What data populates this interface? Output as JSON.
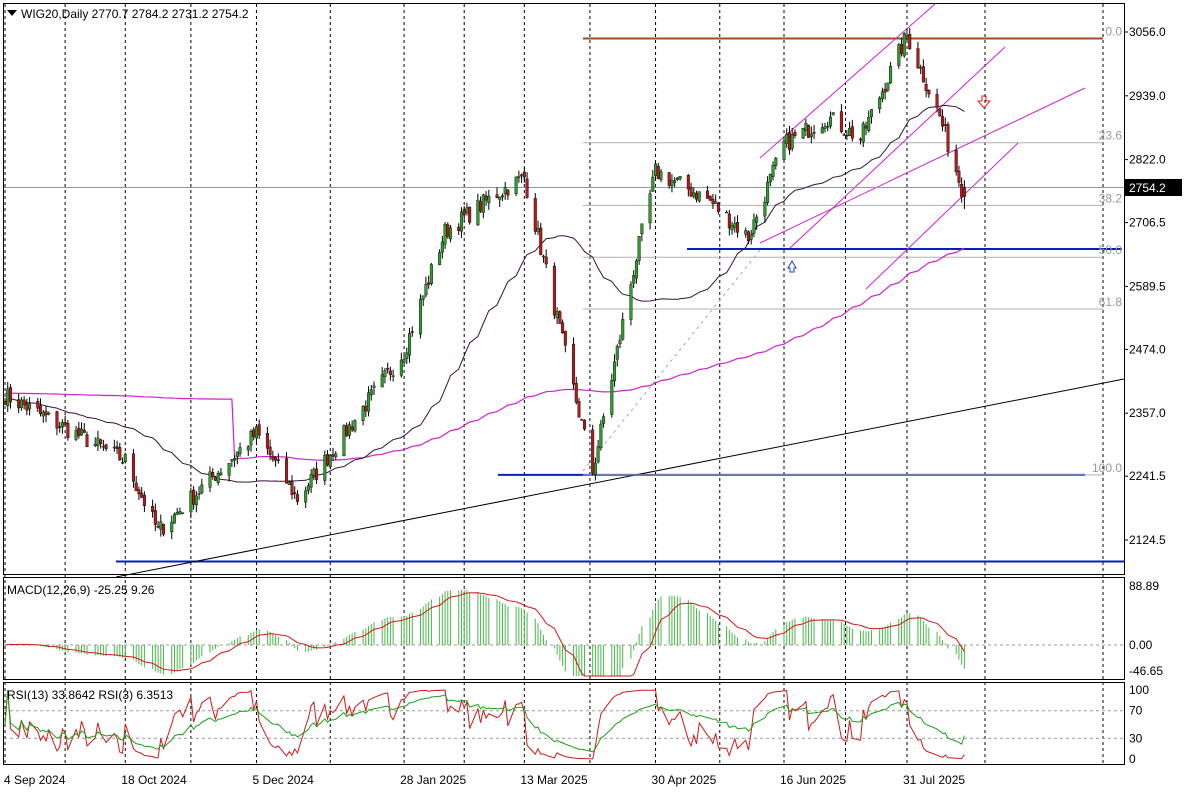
{
  "colors": {
    "bull": "#2e9e2e",
    "bear": "#b31b1b",
    "grid": "#000000",
    "ma_short": "#3a1040",
    "ma_long": "#d020d0",
    "support": "#0a1fb8",
    "fib": "#b0b0b0",
    "fib_top": "#9b4d2a",
    "channel": "#d020d0",
    "trend": "#000000",
    "macd_hist": "#49b649",
    "macd_signal": "#d01818",
    "rsi13": "#18a018",
    "rsi3": "#d01818",
    "last_price_bg": "#000000"
  },
  "main": {
    "symbol_line": "WIG20,Daily  2770.7 2784.2 2731.2 2754.2",
    "last_price_label": "2754.2",
    "y_ticks": [
      "3056.0",
      "2939.0",
      "2822.0",
      "2706.5",
      "2589.5",
      "2474.0",
      "2357.0",
      "2241.5",
      "2124.5"
    ],
    "fib_labels": [
      "0.0",
      "23.6",
      "38.2",
      "50.0",
      "61.8",
      "100.0"
    ]
  },
  "macd": {
    "title": "MACD(12,26,9) -25.25 9.26",
    "ticks": [
      "88.89",
      "0.00",
      "-46.65"
    ]
  },
  "rsi": {
    "title": "RSI(13) 33.8642  RSI(3) 6.3513",
    "ticks": [
      "100",
      "70",
      "30",
      "0"
    ]
  },
  "x_labels": [
    "4 Sep 2024",
    "18 Oct 2024",
    "5 Dec 2024",
    "28 Jan 2025",
    "13 Mar 2025",
    "30 Apr 2025",
    "16 Jun 2025",
    "31 Jul 2025"
  ],
  "chart_data": {
    "type": "candlestick",
    "instrument": "WIG20",
    "timeframe": "Daily",
    "last_bar": {
      "open": 2770.7,
      "high": 2784.2,
      "low": 2731.2,
      "close": 2754.2
    },
    "ylim": [
      2070,
      3080
    ],
    "waypoints": [
      [
        "4 Sep 2024",
        2390
      ],
      [
        "18 Oct 2024",
        2270
      ],
      [
        "2024-10-30",
        2140
      ],
      [
        "5 Dec 2024",
        2320
      ],
      [
        "2024-12-20",
        2200
      ],
      [
        "28 Jan 2025",
        2470
      ],
      [
        "2025-02-12",
        2690
      ],
      [
        "2025-03-03",
        2760
      ],
      [
        "13 Mar 2025",
        2790
      ],
      [
        "2025-04-07",
        2250
      ],
      [
        "2025-04-22",
        2620
      ],
      [
        "30 Apr 2025",
        2800
      ],
      [
        "2025-05-19",
        2750
      ],
      [
        "2025-06-03",
        2680
      ],
      [
        "16 Jun 2025",
        2850
      ],
      [
        "2025-07-02",
        2900
      ],
      [
        "2025-07-14",
        2860
      ],
      [
        "31 Jul 2025",
        3050
      ],
      [
        "2025-08-12",
        2900
      ],
      [
        "2025-08-21",
        2754
      ]
    ],
    "indicators": {
      "macd": {
        "params": "12,26,9",
        "value": -25.25,
        "signal": 9.26
      },
      "rsi13": 33.8642,
      "rsi3": 6.3513
    },
    "support_levels": [
      2658,
      2244,
      2085
    ],
    "fibonacci": [
      {
        "level": "0.0",
        "price": 3044
      },
      {
        "level": "23.6",
        "price": 2853
      },
      {
        "level": "38.2",
        "price": 2738
      },
      {
        "level": "50.0",
        "price": 2643
      },
      {
        "level": "61.8",
        "price": 2548
      },
      {
        "level": "100.0",
        "price": 2244
      }
    ]
  }
}
